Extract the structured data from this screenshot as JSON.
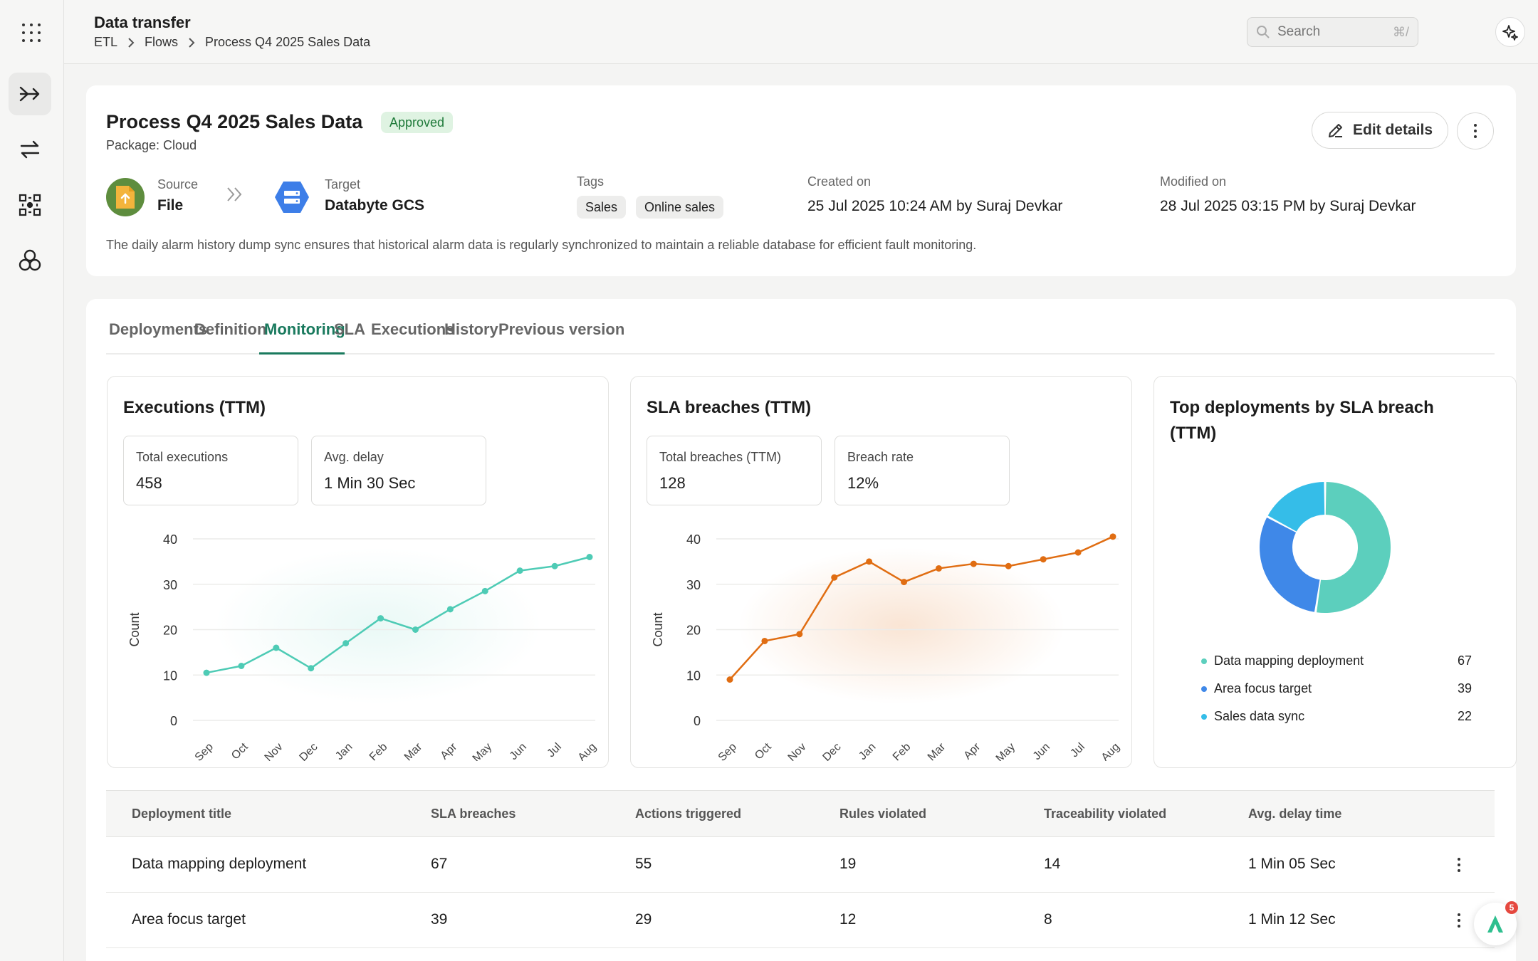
{
  "app": {
    "title": "Data transfer",
    "breadcrumbs": [
      "ETL",
      "Flows",
      "Process Q4 2025 Sales Data"
    ],
    "search_placeholder": "Search",
    "search_shortcut": "⌘/"
  },
  "sidebar": {
    "items": [
      {
        "icon": "flow-arrows-icon",
        "active": true
      },
      {
        "icon": "transfer-icon",
        "active": false
      },
      {
        "icon": "components-icon",
        "active": false
      },
      {
        "icon": "hexagons-icon",
        "active": false
      }
    ]
  },
  "flow": {
    "title": "Process Q4 2025 Sales Data",
    "status": "Approved",
    "package": "Package: Cloud",
    "edit_label": "Edit details",
    "source_label": "Source",
    "source_value": "File",
    "target_label": "Target",
    "target_value": "Databyte GCS",
    "tags_label": "Tags",
    "tags": [
      "Sales",
      "Online sales"
    ],
    "created_label": "Created on",
    "created_value": "25 Jul 2025 10:24 AM by Suraj Devkar",
    "modified_label": "Modified on",
    "modified_value": "28 Jul 2025 03:15 PM by Suraj Devkar",
    "description": "The daily alarm history dump sync ensures that historical alarm data is regularly synchronized to maintain a reliable database for efficient fault monitoring."
  },
  "tabs": [
    "Deployments",
    "Definition",
    "Monitoring",
    "SLA",
    "Executions",
    "History",
    "Previous version"
  ],
  "active_tab": "Monitoring",
  "panels": {
    "executions": {
      "title": "Executions (TTM)",
      "stats": [
        {
          "label": "Total executions",
          "value": "458"
        },
        {
          "label": "Avg. delay",
          "value": "1 Min 30 Sec"
        }
      ]
    },
    "breaches": {
      "title": "SLA breaches (TTM)",
      "stats": [
        {
          "label": "Total breaches (TTM)",
          "value": "128"
        },
        {
          "label": "Breach rate",
          "value": "12%"
        }
      ]
    },
    "top": {
      "title_line1": "Top deployments by SLA breach",
      "title_line2": "(TTM)"
    }
  },
  "chart_data": [
    {
      "type": "line",
      "ylabel": "Count",
      "ylim": [
        0,
        40
      ],
      "yticks": [
        0,
        10,
        20,
        30,
        40
      ],
      "categories": [
        "Sep",
        "Oct",
        "Nov",
        "Dec",
        "Jan",
        "Feb",
        "Mar",
        "Apr",
        "May",
        "Jun",
        "Jul",
        "Aug"
      ],
      "values": [
        10.5,
        12,
        16,
        11.5,
        17,
        22.5,
        20,
        24.5,
        28.5,
        33,
        34,
        36
      ],
      "color": "#4ecbb5",
      "grid": true
    },
    {
      "type": "line",
      "ylabel": "Count",
      "ylim": [
        0,
        40
      ],
      "yticks": [
        0,
        10,
        20,
        30,
        40
      ],
      "categories": [
        "Sep",
        "Oct",
        "Nov",
        "Dec",
        "Jan",
        "Feb",
        "Mar",
        "Apr",
        "May",
        "Jun",
        "Jul",
        "Aug"
      ],
      "values": [
        9,
        17.5,
        19,
        31.5,
        35,
        30.5,
        33.5,
        34.5,
        34,
        35.5,
        37,
        40.5
      ],
      "color": "#e06d12",
      "grid": true
    },
    {
      "type": "pie",
      "donut": true,
      "labels": [
        "Data mapping deployment",
        "Area focus target",
        "Sales data sync"
      ],
      "values": [
        67,
        39,
        22
      ],
      "colors": [
        "#5ccfbd",
        "#3f88e8",
        "#35bde8"
      ],
      "legend": "bottom"
    }
  ],
  "table": {
    "columns": [
      "Deployment title",
      "SLA breaches",
      "Actions triggered",
      "Rules violated",
      "Traceability violated",
      "Avg. delay time"
    ],
    "rows": [
      [
        "Data mapping deployment",
        "67",
        "55",
        "19",
        "14",
        "1 Min 05 Sec"
      ],
      [
        "Area focus target",
        "39",
        "29",
        "12",
        "8",
        "1 Min 12 Sec"
      ]
    ]
  },
  "fab": {
    "badge": "5",
    "letter": "A"
  }
}
